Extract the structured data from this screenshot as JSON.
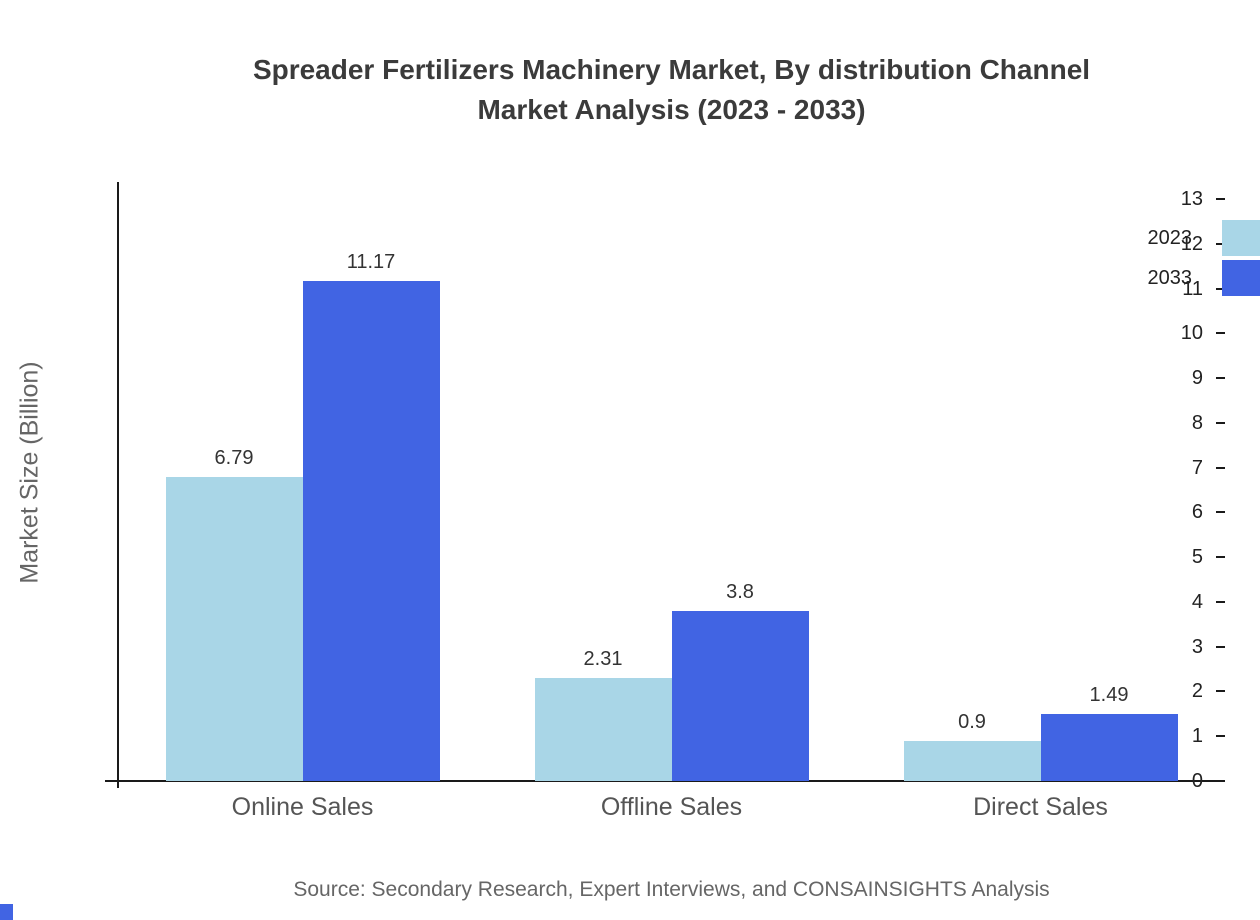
{
  "chart_data": {
    "type": "bar",
    "title_line1": "Spreader Fertilizers Machinery Market, By distribution Channel",
    "title_line2": "Market Analysis (2023 - 2033)",
    "ylabel": "Market Size (Billion)",
    "categories": [
      "Online Sales",
      "Offline Sales",
      "Direct Sales"
    ],
    "series": [
      {
        "name": "2023",
        "color": "#A9D6E7",
        "values": [
          6.79,
          2.31,
          0.9
        ]
      },
      {
        "name": "2033",
        "color": "#4164E3",
        "values": [
          11.17,
          3.8,
          1.49
        ]
      }
    ],
    "ylim": [
      0,
      13
    ],
    "ytick_step": 1,
    "grid": false,
    "legend_position": "top-right"
  },
  "source_note": "Source: Secondary Research, Expert Interviews, and CONSAINSIGHTS Analysis"
}
